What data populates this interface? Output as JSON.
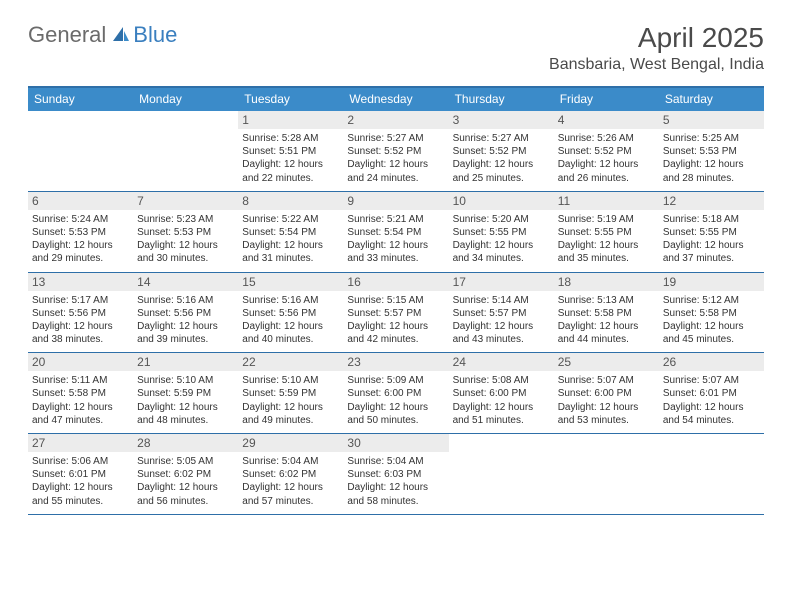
{
  "logo": {
    "part1": "General",
    "part2": "Blue"
  },
  "title": "April 2025",
  "location": "Bansbaria, West Bengal, India",
  "colors": {
    "header_bar": "#3b8bc9",
    "border": "#2e6fa8",
    "daynum_bg": "#ececec",
    "logo_gray": "#6b6b6b",
    "logo_blue": "#3a7fbf"
  },
  "dow": [
    "Sunday",
    "Monday",
    "Tuesday",
    "Wednesday",
    "Thursday",
    "Friday",
    "Saturday"
  ],
  "weeks": [
    [
      {
        "n": "",
        "sr": "",
        "ss": "",
        "dl": ""
      },
      {
        "n": "",
        "sr": "",
        "ss": "",
        "dl": ""
      },
      {
        "n": "1",
        "sr": "Sunrise: 5:28 AM",
        "ss": "Sunset: 5:51 PM",
        "dl": "Daylight: 12 hours and 22 minutes."
      },
      {
        "n": "2",
        "sr": "Sunrise: 5:27 AM",
        "ss": "Sunset: 5:52 PM",
        "dl": "Daylight: 12 hours and 24 minutes."
      },
      {
        "n": "3",
        "sr": "Sunrise: 5:27 AM",
        "ss": "Sunset: 5:52 PM",
        "dl": "Daylight: 12 hours and 25 minutes."
      },
      {
        "n": "4",
        "sr": "Sunrise: 5:26 AM",
        "ss": "Sunset: 5:52 PM",
        "dl": "Daylight: 12 hours and 26 minutes."
      },
      {
        "n": "5",
        "sr": "Sunrise: 5:25 AM",
        "ss": "Sunset: 5:53 PM",
        "dl": "Daylight: 12 hours and 28 minutes."
      }
    ],
    [
      {
        "n": "6",
        "sr": "Sunrise: 5:24 AM",
        "ss": "Sunset: 5:53 PM",
        "dl": "Daylight: 12 hours and 29 minutes."
      },
      {
        "n": "7",
        "sr": "Sunrise: 5:23 AM",
        "ss": "Sunset: 5:53 PM",
        "dl": "Daylight: 12 hours and 30 minutes."
      },
      {
        "n": "8",
        "sr": "Sunrise: 5:22 AM",
        "ss": "Sunset: 5:54 PM",
        "dl": "Daylight: 12 hours and 31 minutes."
      },
      {
        "n": "9",
        "sr": "Sunrise: 5:21 AM",
        "ss": "Sunset: 5:54 PM",
        "dl": "Daylight: 12 hours and 33 minutes."
      },
      {
        "n": "10",
        "sr": "Sunrise: 5:20 AM",
        "ss": "Sunset: 5:55 PM",
        "dl": "Daylight: 12 hours and 34 minutes."
      },
      {
        "n": "11",
        "sr": "Sunrise: 5:19 AM",
        "ss": "Sunset: 5:55 PM",
        "dl": "Daylight: 12 hours and 35 minutes."
      },
      {
        "n": "12",
        "sr": "Sunrise: 5:18 AM",
        "ss": "Sunset: 5:55 PM",
        "dl": "Daylight: 12 hours and 37 minutes."
      }
    ],
    [
      {
        "n": "13",
        "sr": "Sunrise: 5:17 AM",
        "ss": "Sunset: 5:56 PM",
        "dl": "Daylight: 12 hours and 38 minutes."
      },
      {
        "n": "14",
        "sr": "Sunrise: 5:16 AM",
        "ss": "Sunset: 5:56 PM",
        "dl": "Daylight: 12 hours and 39 minutes."
      },
      {
        "n": "15",
        "sr": "Sunrise: 5:16 AM",
        "ss": "Sunset: 5:56 PM",
        "dl": "Daylight: 12 hours and 40 minutes."
      },
      {
        "n": "16",
        "sr": "Sunrise: 5:15 AM",
        "ss": "Sunset: 5:57 PM",
        "dl": "Daylight: 12 hours and 42 minutes."
      },
      {
        "n": "17",
        "sr": "Sunrise: 5:14 AM",
        "ss": "Sunset: 5:57 PM",
        "dl": "Daylight: 12 hours and 43 minutes."
      },
      {
        "n": "18",
        "sr": "Sunrise: 5:13 AM",
        "ss": "Sunset: 5:58 PM",
        "dl": "Daylight: 12 hours and 44 minutes."
      },
      {
        "n": "19",
        "sr": "Sunrise: 5:12 AM",
        "ss": "Sunset: 5:58 PM",
        "dl": "Daylight: 12 hours and 45 minutes."
      }
    ],
    [
      {
        "n": "20",
        "sr": "Sunrise: 5:11 AM",
        "ss": "Sunset: 5:58 PM",
        "dl": "Daylight: 12 hours and 47 minutes."
      },
      {
        "n": "21",
        "sr": "Sunrise: 5:10 AM",
        "ss": "Sunset: 5:59 PM",
        "dl": "Daylight: 12 hours and 48 minutes."
      },
      {
        "n": "22",
        "sr": "Sunrise: 5:10 AM",
        "ss": "Sunset: 5:59 PM",
        "dl": "Daylight: 12 hours and 49 minutes."
      },
      {
        "n": "23",
        "sr": "Sunrise: 5:09 AM",
        "ss": "Sunset: 6:00 PM",
        "dl": "Daylight: 12 hours and 50 minutes."
      },
      {
        "n": "24",
        "sr": "Sunrise: 5:08 AM",
        "ss": "Sunset: 6:00 PM",
        "dl": "Daylight: 12 hours and 51 minutes."
      },
      {
        "n": "25",
        "sr": "Sunrise: 5:07 AM",
        "ss": "Sunset: 6:00 PM",
        "dl": "Daylight: 12 hours and 53 minutes."
      },
      {
        "n": "26",
        "sr": "Sunrise: 5:07 AM",
        "ss": "Sunset: 6:01 PM",
        "dl": "Daylight: 12 hours and 54 minutes."
      }
    ],
    [
      {
        "n": "27",
        "sr": "Sunrise: 5:06 AM",
        "ss": "Sunset: 6:01 PM",
        "dl": "Daylight: 12 hours and 55 minutes."
      },
      {
        "n": "28",
        "sr": "Sunrise: 5:05 AM",
        "ss": "Sunset: 6:02 PM",
        "dl": "Daylight: 12 hours and 56 minutes."
      },
      {
        "n": "29",
        "sr": "Sunrise: 5:04 AM",
        "ss": "Sunset: 6:02 PM",
        "dl": "Daylight: 12 hours and 57 minutes."
      },
      {
        "n": "30",
        "sr": "Sunrise: 5:04 AM",
        "ss": "Sunset: 6:03 PM",
        "dl": "Daylight: 12 hours and 58 minutes."
      },
      {
        "n": "",
        "sr": "",
        "ss": "",
        "dl": ""
      },
      {
        "n": "",
        "sr": "",
        "ss": "",
        "dl": ""
      },
      {
        "n": "",
        "sr": "",
        "ss": "",
        "dl": ""
      }
    ]
  ]
}
